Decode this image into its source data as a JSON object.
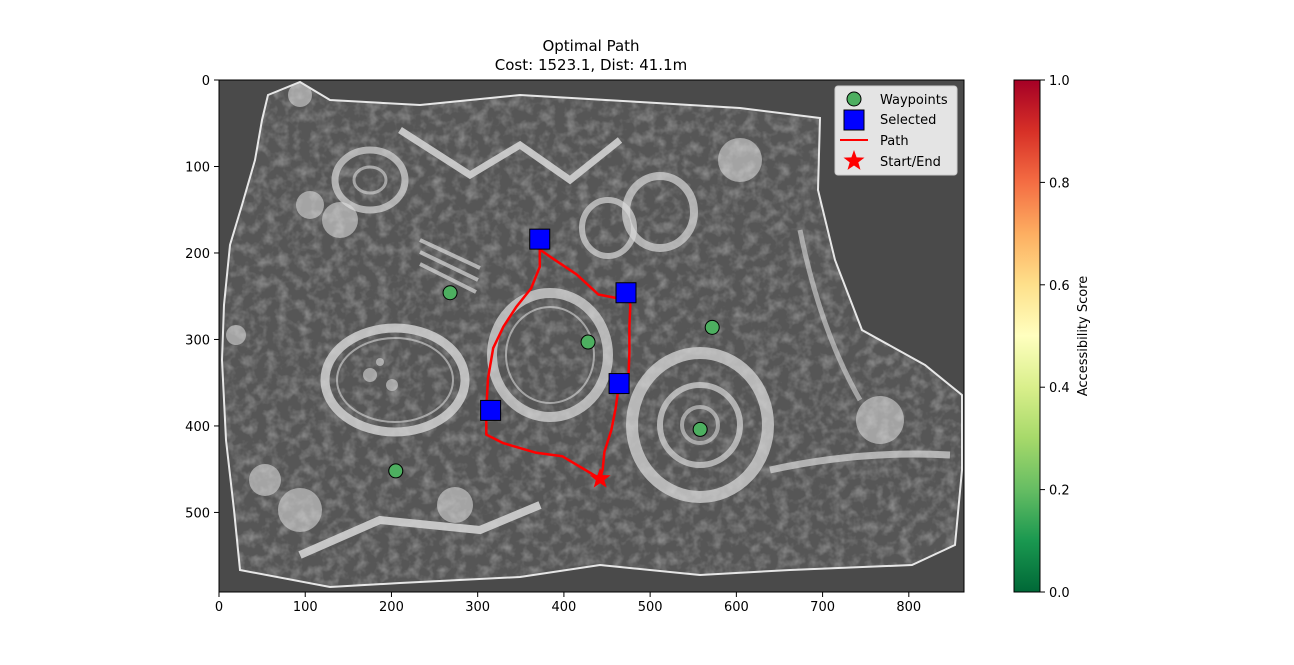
{
  "chart_data": [
    {
      "type": "scatter",
      "title": "Optimal Path",
      "subtitle": "Cost: 1523.1, Dist: 41.1m",
      "xlabel": "",
      "ylabel": "",
      "xlim": [
        0,
        864
      ],
      "ylim": [
        592,
        0
      ],
      "y_inverted": true,
      "x_ticks": [
        0,
        100,
        200,
        300,
        400,
        500,
        600,
        700,
        800
      ],
      "y_ticks": [
        0,
        100,
        200,
        300,
        400,
        500
      ],
      "grid": false,
      "legend_position": "top-right",
      "background": "grayscale tissue image",
      "series": [
        {
          "name": "Waypoints",
          "marker": "circle",
          "color": "#4daf60",
          "points": [
            [
              268,
              246
            ],
            [
              428,
              303
            ],
            [
              572,
              286
            ],
            [
              558,
              404
            ],
            [
              205,
              452
            ]
          ]
        },
        {
          "name": "Selected",
          "marker": "square",
          "color": "#0000ff",
          "points": [
            [
              372,
              184
            ],
            [
              472,
              246
            ],
            [
              464,
              351
            ],
            [
              315,
              382
            ]
          ]
        },
        {
          "name": "Path",
          "marker": "line",
          "color": "#ff0000",
          "points": [
            [
              442,
              461
            ],
            [
              420,
              448
            ],
            [
              398,
              435
            ],
            [
              368,
              431
            ],
            [
              330,
              420
            ],
            [
              310,
              410
            ],
            [
              310,
              380
            ],
            [
              312,
              345
            ],
            [
              318,
              310
            ],
            [
              330,
              285
            ],
            [
              345,
              262
            ],
            [
              362,
              241
            ],
            [
              372,
              216
            ],
            [
              372,
              196
            ],
            [
              385,
              205
            ],
            [
              415,
              225
            ],
            [
              440,
              248
            ],
            [
              460,
              252
            ],
            [
              472,
              246
            ],
            [
              477,
              260
            ],
            [
              476,
              285
            ],
            [
              476,
              315
            ],
            [
              475,
              340
            ],
            [
              464,
              351
            ],
            [
              460,
              380
            ],
            [
              455,
              405
            ],
            [
              447,
              430
            ],
            [
              445,
              450
            ],
            [
              442,
              461
            ]
          ]
        },
        {
          "name": "Start/End",
          "marker": "star",
          "color": "#ff0000",
          "points": [
            [
              442,
              461
            ]
          ]
        }
      ]
    },
    {
      "type": "heatmap",
      "colorbar": true,
      "ylabel": "Accessibility Score",
      "range": [
        0.0,
        1.0
      ],
      "ticks": [
        0.0,
        0.2,
        0.4,
        0.6,
        0.8,
        1.0
      ],
      "colormap": "RdYlGn_r",
      "colormap_stops": [
        "#006837",
        "#1a9850",
        "#66bd63",
        "#a6d96a",
        "#d9ef8b",
        "#ffffbf",
        "#fee08b",
        "#fdae61",
        "#f46d43",
        "#d73027",
        "#a50026"
      ]
    }
  ]
}
